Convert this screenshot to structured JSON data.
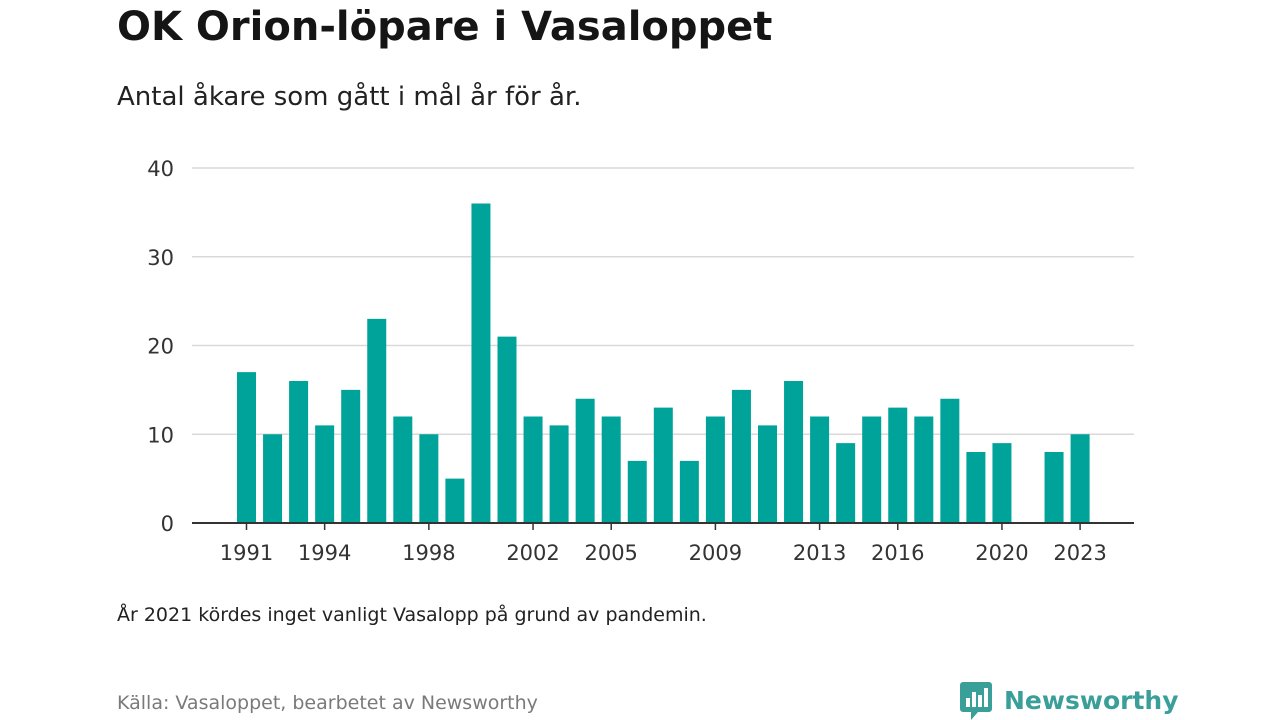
{
  "title": "OK Orion-löpare i Vasaloppet",
  "subtitle": "Antal åkare som gått i mål år för år.",
  "note": "År 2021 kördes inget vanligt Vasalopp på grund av pandemin.",
  "source": "Källa: Vasaloppet, bearbetet av Newsworthy",
  "brand": {
    "name": "Newsworthy",
    "icon": "newsworthy-logo-icon",
    "color": "#3a9f98"
  },
  "chart_data": {
    "type": "bar",
    "categories": [
      1991,
      1992,
      1993,
      1994,
      1995,
      1996,
      1997,
      1998,
      1999,
      2000,
      2001,
      2002,
      2003,
      2004,
      2005,
      2006,
      2007,
      2008,
      2009,
      2010,
      2011,
      2012,
      2013,
      2014,
      2015,
      2016,
      2017,
      2018,
      2019,
      2020,
      2021,
      2022,
      2023
    ],
    "values": [
      17,
      10,
      16,
      11,
      15,
      23,
      12,
      10,
      5,
      36,
      21,
      12,
      11,
      14,
      12,
      7,
      13,
      7,
      12,
      15,
      11,
      16,
      12,
      9,
      12,
      13,
      12,
      14,
      8,
      9,
      null,
      8,
      10
    ],
    "x_tick_labels": [
      1991,
      1994,
      1998,
      2002,
      2005,
      2009,
      2013,
      2016,
      2020,
      2023
    ],
    "y_ticks": [
      0,
      10,
      20,
      30,
      40
    ],
    "ylim": [
      0,
      40
    ],
    "xlabel": "",
    "ylabel": "",
    "grid": true,
    "bar_color": "#00a39a",
    "grid_color": "#d9d9d9",
    "axis_color": "#333333"
  }
}
